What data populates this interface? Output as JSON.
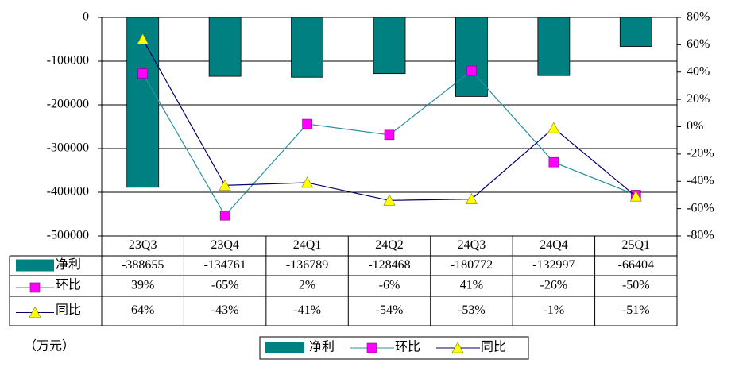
{
  "chart_data": {
    "type": "bar_line_table",
    "ylabel": "（万元）",
    "categories": [
      "23Q3",
      "23Q4",
      "24Q1",
      "24Q2",
      "24Q3",
      "24Q4",
      "25Q1"
    ],
    "series": [
      {
        "name": "净利",
        "type": "bar",
        "color": "#008080",
        "values": [
          -388655,
          -134761,
          -136789,
          -128468,
          -180772,
          -132997,
          -66404
        ]
      },
      {
        "name": "环比",
        "type": "line",
        "axis": "y2",
        "color": "#2a8fa0",
        "marker": "square",
        "marker_color": "#ff00ff",
        "values": [
          39,
          -65,
          2,
          -6,
          41,
          -26,
          -50
        ],
        "value_labels": [
          "39%",
          "-65%",
          "2%",
          "-6%",
          "41%",
          "-26%",
          "-50%"
        ]
      },
      {
        "name": "同比",
        "type": "line",
        "axis": "y2",
        "color": "#000066",
        "marker": "triangle",
        "marker_color": "#ffff00",
        "values": [
          64,
          -43,
          -41,
          -54,
          -53,
          -1,
          -51
        ],
        "value_labels": [
          "64%",
          "-43%",
          "-41%",
          "-54%",
          "-53%",
          "-1%",
          "-51%"
        ]
      }
    ],
    "ylim": [
      -500000,
      0
    ],
    "yticks": [
      0,
      -100000,
      -200000,
      -300000,
      -400000,
      -500000
    ],
    "y2lim": [
      -80,
      80
    ],
    "y2ticks": [
      {
        "value": 80,
        "label": "80%"
      },
      {
        "value": 60,
        "label": "60%"
      },
      {
        "value": 40,
        "label": "40%"
      },
      {
        "value": 20,
        "label": "20%"
      },
      {
        "value": 0,
        "label": "0%"
      },
      {
        "value": -20,
        "label": "-20%"
      },
      {
        "value": -40,
        "label": "-40%"
      },
      {
        "value": -60,
        "label": "-60%"
      },
      {
        "value": -80,
        "label": "-80%"
      }
    ],
    "grid": true
  }
}
